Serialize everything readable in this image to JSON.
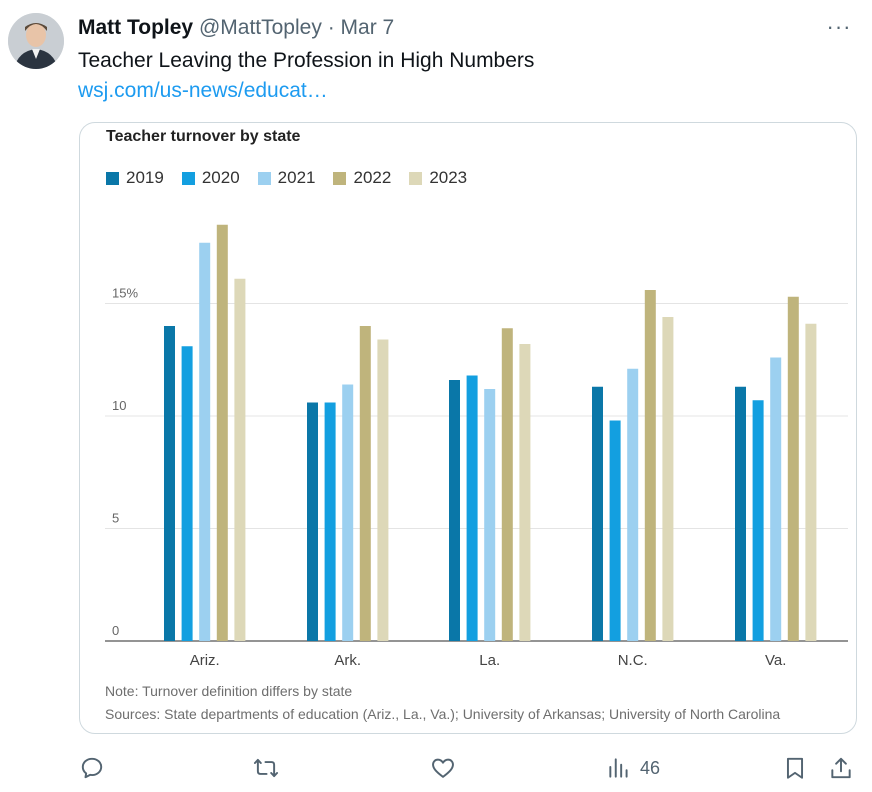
{
  "author": {
    "name": "Matt Topley",
    "handle": "@MattTopley",
    "separator": "·",
    "date": "Mar 7"
  },
  "tweet": {
    "text": "Teacher Leaving the Profession in High Numbers",
    "link": "wsj.com/us-news/educat…"
  },
  "menu": {
    "more_label": "···"
  },
  "chart_data": {
    "type": "bar",
    "title": "Teacher turnover by state",
    "categories": [
      "Ariz.",
      "Ark.",
      "La.",
      "N.C.",
      "Va."
    ],
    "series": [
      {
        "name": "2019",
        "color": "#0a77a8",
        "values": [
          14.0,
          10.6,
          11.6,
          11.3,
          11.3
        ]
      },
      {
        "name": "2020",
        "color": "#139fe0",
        "values": [
          13.1,
          10.6,
          11.8,
          9.8,
          10.7
        ]
      },
      {
        "name": "2021",
        "color": "#9cd0f0",
        "values": [
          17.7,
          11.4,
          11.2,
          12.1,
          12.6
        ]
      },
      {
        "name": "2022",
        "color": "#bfb47c",
        "values": [
          18.5,
          14.0,
          13.9,
          15.6,
          15.3
        ]
      },
      {
        "name": "2023",
        "color": "#ddd8b8",
        "values": [
          16.1,
          13.4,
          13.2,
          14.4,
          14.1
        ]
      }
    ],
    "yticks": [
      {
        "value": 0,
        "label": "0"
      },
      {
        "value": 5,
        "label": "5"
      },
      {
        "value": 10,
        "label": "10"
      },
      {
        "value": 15,
        "label": "15%"
      }
    ],
    "ylim": [
      0,
      20
    ],
    "grid": true,
    "legend": "top-left",
    "note": "Note: Turnover definition differs by state",
    "sources": "Sources: State departments of education (Ariz., La., Va.); University of Arkansas; University of North Carolina"
  },
  "actions": {
    "reply_label": "",
    "retweet_label": "",
    "like_label": "",
    "views_count": "46"
  },
  "icons": {
    "reply": "reply-icon",
    "retweet": "retweet-icon",
    "like": "heart-icon",
    "views": "views-icon",
    "bookmark": "bookmark-icon",
    "share": "share-icon"
  }
}
